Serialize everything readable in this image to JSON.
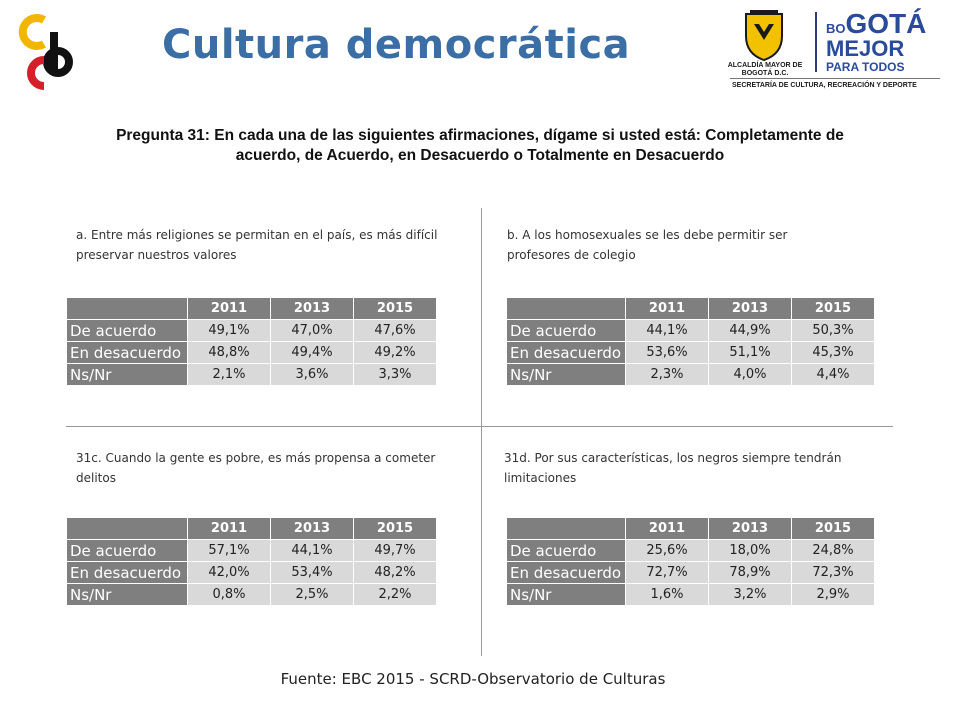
{
  "header": {
    "title": "Cultura democrática",
    "right_logo": {
      "alcaldia": "ALCALDÍA MAYOR DE BOGOTÁ D.C.",
      "bogota_prefix": "BO",
      "bogota_main": "GOTÁ",
      "mejor": "MEJOR",
      "para_todos": "PARA TODOS",
      "secretaria": "SECRETARÍA DE CULTURA, RECREACIÓN Y DEPORTE"
    }
  },
  "question": "Pregunta 31: En cada una de las siguientes afirmaciones, dígame si usted está: Completamente de acuerdo, de Acuerdo, en Desacuerdo o Totalmente en Desacuerdo",
  "columns": [
    "2011",
    "2013",
    "2015"
  ],
  "panels": [
    {
      "caption": "a. Entre más religiones se permitan en el país, es más difícil preservar nuestros valores",
      "rows": [
        {
          "label": "De acuerdo",
          "values": [
            "49,1%",
            "47,0%",
            "47,6%"
          ]
        },
        {
          "label": "En desacuerdo",
          "values": [
            "48,8%",
            "49,4%",
            "49,2%"
          ]
        },
        {
          "label": "Ns/Nr",
          "values": [
            "2,1%",
            "3,6%",
            "3,3%"
          ]
        }
      ]
    },
    {
      "caption": "b. A los homosexuales se les debe permitir ser profesores de colegio",
      "rows": [
        {
          "label": "De acuerdo",
          "values": [
            "44,1%",
            "44,9%",
            "50,3%"
          ]
        },
        {
          "label": "En desacuerdo",
          "values": [
            "53,6%",
            "51,1%",
            "45,3%"
          ]
        },
        {
          "label": "Ns/Nr",
          "values": [
            "2,3%",
            "4,0%",
            "4,4%"
          ]
        }
      ]
    },
    {
      "caption": "31c. Cuando la gente es pobre, es más propensa a cometer delitos",
      "rows": [
        {
          "label": "De acuerdo",
          "values": [
            "57,1%",
            "44,1%",
            "49,7%"
          ]
        },
        {
          "label": "En desacuerdo",
          "values": [
            "42,0%",
            "53,4%",
            "48,2%"
          ]
        },
        {
          "label": "Ns/Nr",
          "values": [
            "0,8%",
            "2,5%",
            "2,2%"
          ]
        }
      ]
    },
    {
      "caption": "31d. Por sus características, los negros siempre tendrán limitaciones",
      "rows": [
        {
          "label": "De acuerdo",
          "values": [
            "25,6%",
            "18,0%",
            "24,8%"
          ]
        },
        {
          "label": "En desacuerdo",
          "values": [
            "72,7%",
            "78,9%",
            "72,3%"
          ]
        },
        {
          "label": "Ns/Nr",
          "values": [
            "1,6%",
            "3,2%",
            "2,9%"
          ]
        }
      ]
    }
  ],
  "source": "Fuente: EBC 2015 - SCRD-Observatorio de Culturas"
}
